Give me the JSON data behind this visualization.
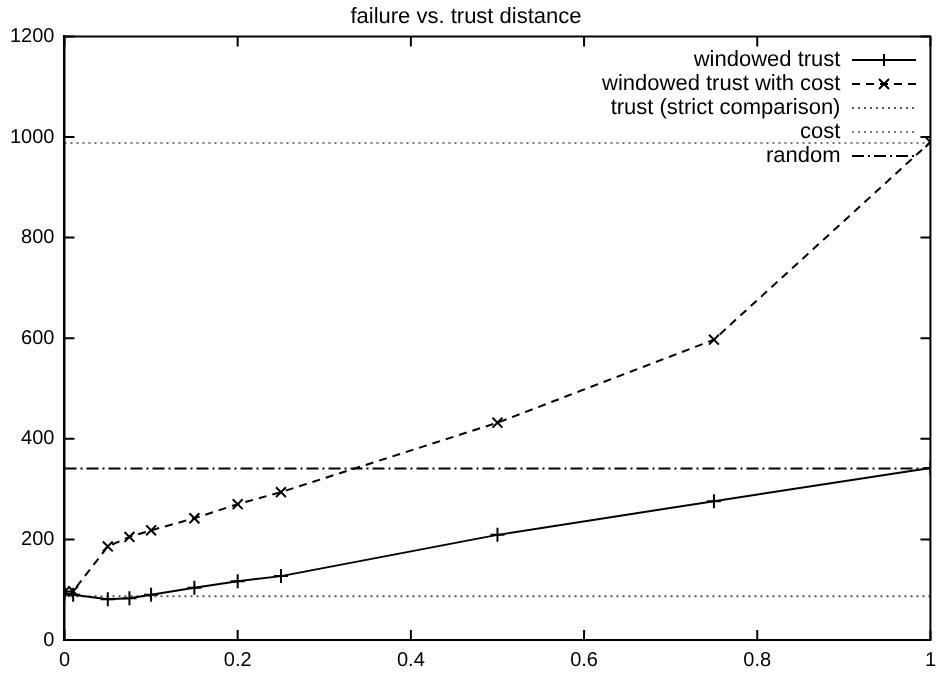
{
  "chart_data": {
    "type": "line",
    "title": "failure vs. trust distance",
    "xlim": [
      0,
      1
    ],
    "xticks": [
      0,
      0.2,
      0.4,
      0.6,
      0.8,
      1
    ],
    "ylim": [
      0,
      1200
    ],
    "yticks": [
      0,
      200,
      400,
      600,
      800,
      1000,
      1200
    ],
    "grid": false,
    "legend": "top right",
    "series": [
      {
        "name": "windowed trust",
        "color": "#000000",
        "marker": "cross",
        "line_style": "solid",
        "x": [
          0,
          0.01,
          0.05,
          0.075,
          0.1,
          0.15,
          0.2,
          0.25,
          0.5,
          0.75,
          1
        ],
        "values": [
          92,
          90,
          81,
          83,
          90,
          104,
          117,
          127,
          209,
          276,
          342
        ]
      },
      {
        "name": "windowed trust with cost",
        "color": "#000000",
        "marker": "x",
        "line_style": "dashed",
        "x": [
          0,
          0.01,
          0.05,
          0.075,
          0.1,
          0.15,
          0.2,
          0.25,
          0.5,
          0.75,
          1
        ],
        "values": [
          96,
          97,
          186,
          205,
          218,
          242,
          270,
          294,
          432,
          597,
          990
        ]
      },
      {
        "name": "trust (strict comparison)",
        "color": "#555555",
        "marker": "none",
        "line_style": "dotted",
        "x": [
          0,
          1
        ],
        "values": [
          87,
          87
        ]
      },
      {
        "name": "cost",
        "color": "#777777",
        "marker": "none",
        "line_style": "dotted",
        "x": [
          0,
          1
        ],
        "values": [
          988,
          988
        ]
      },
      {
        "name": "random",
        "color": "#000000",
        "marker": "none",
        "line_style": "dashdot",
        "x": [
          0,
          1
        ],
        "values": [
          341,
          341
        ]
      }
    ]
  }
}
